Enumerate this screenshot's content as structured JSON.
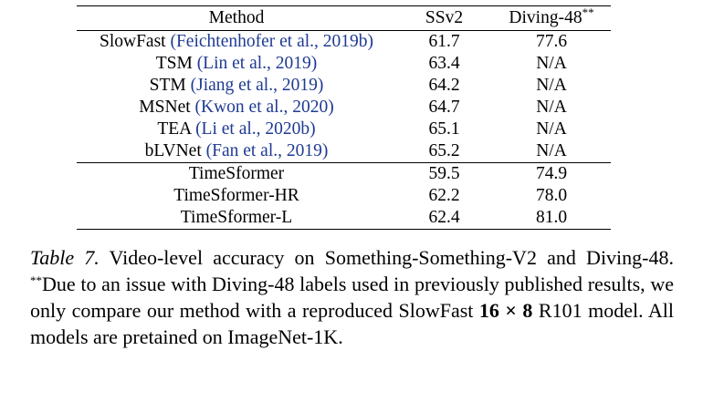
{
  "table": {
    "headers": {
      "method": "Method",
      "ssv2": "SSv2",
      "diving": "Diving-48",
      "diving_marker": "**"
    },
    "prior_rows": [
      {
        "method": "SlowFast",
        "cite": "(Feichtenhofer et al., 2019b)",
        "ssv2": "61.7",
        "diving": "77.6"
      },
      {
        "method": "TSM",
        "cite": "(Lin et al., 2019)",
        "ssv2": "63.4",
        "diving": "N/A"
      },
      {
        "method": "STM",
        "cite": "(Jiang et al., 2019)",
        "ssv2": "64.2",
        "diving": "N/A"
      },
      {
        "method": "MSNet",
        "cite": "(Kwon et al., 2020)",
        "ssv2": "64.7",
        "diving": "N/A"
      },
      {
        "method": "TEA",
        "cite": "(Li et al., 2020b)",
        "ssv2": "65.1",
        "diving": "N/A"
      },
      {
        "method": "bLVNet",
        "cite": "(Fan et al., 2019)",
        "ssv2": "65.2",
        "diving": "N/A",
        "ssv2_bold": true
      }
    ],
    "ours_rows": [
      {
        "method": "TimeSformer",
        "ssv2": "59.5",
        "diving": "74.9"
      },
      {
        "method": "TimeSformer-HR",
        "ssv2": "62.2",
        "diving": "78.0"
      },
      {
        "method": "TimeSformer-L",
        "ssv2": "62.4",
        "diving": "81.0",
        "diving_bold": true
      }
    ]
  },
  "caption": {
    "label": "Table 7.",
    "text_1": " Video-level accuracy on Something-Something-V2 and Diving-48. ",
    "marker": "**",
    "text_2": "Due to an issue with Diving-48 labels used in previously published results, we only compare our method with a reproduced SlowFast ",
    "math": "16 × 8",
    "text_3": " R101 model. All models are pretained on ImageNet-1K."
  }
}
